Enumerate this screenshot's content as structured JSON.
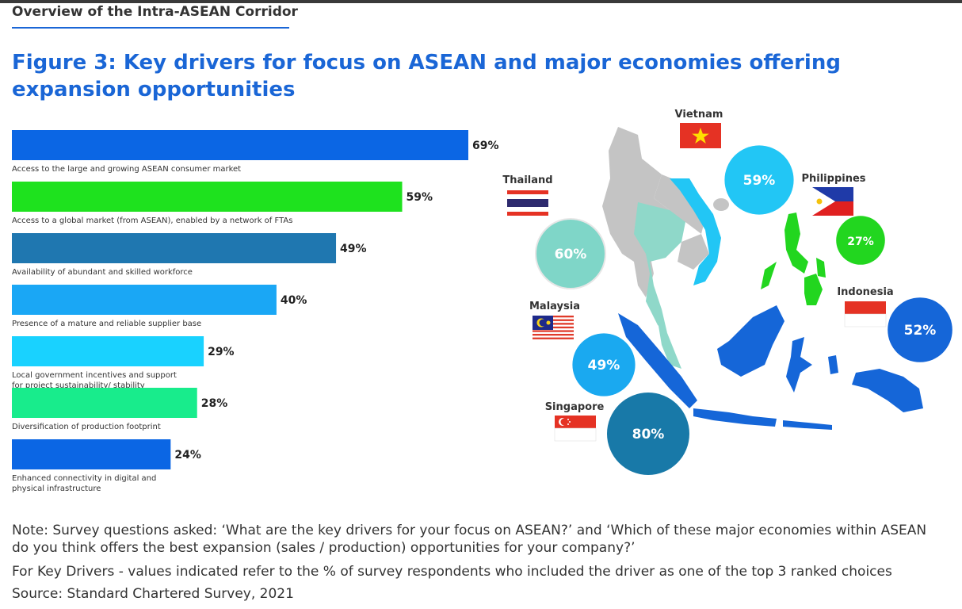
{
  "header": {
    "section_title": "Overview of the Intra-ASEAN Corridor",
    "figure_title": "Figure 3: Key drivers for focus on ASEAN and major economies offering expansion opportunities"
  },
  "chart_data": [
    {
      "type": "bar",
      "orientation": "horizontal",
      "categories": [
        "Access to the large and growing ASEAN consumer market",
        "Access to a global market (from ASEAN), enabled by a network of FTAs",
        "Availability of abundant and skilled workforce",
        "Presence of a mature and reliable supplier base",
        "Local government incentives and support for project sustainability/ stability",
        "Diversification of production footprint",
        "Enhanced connectivity in digital and physical infrastructure"
      ],
      "category_lines": [
        [
          "Access to the large and growing ASEAN consumer market"
        ],
        [
          "Access to a global market (from ASEAN), enabled by a network of FTAs"
        ],
        [
          "Availability of abundant and skilled workforce"
        ],
        [
          "Presence of a mature and reliable supplier base"
        ],
        [
          "Local government incentives and support",
          "for project sustainability/ stability"
        ],
        [
          "Diversification of production footprint"
        ],
        [
          "Enhanced connectivity in digital and",
          "physical infrastructure"
        ]
      ],
      "values": [
        69,
        59,
        49,
        40,
        29,
        28,
        24
      ],
      "value_labels": [
        "69%",
        "59%",
        "49%",
        "40%",
        "29%",
        "28%",
        "24%"
      ],
      "colors": [
        "#0b66e4",
        "#1ee21e",
        "#1f77b0",
        "#1aa7f5",
        "#19d2ff",
        "#18ec8c",
        "#0b66e4"
      ],
      "unit": "%"
    },
    {
      "type": "bubble-map",
      "countries": [
        {
          "name": "Vietnam",
          "value": 59,
          "label": "59%",
          "color": "#22c6f5"
        },
        {
          "name": "Thailand",
          "value": 60,
          "label": "60%",
          "color": "#7fd6c8"
        },
        {
          "name": "Philippines",
          "value": 27,
          "label": "27%",
          "color": "#22d61f"
        },
        {
          "name": "Malaysia",
          "value": 49,
          "label": "49%",
          "color": "#1aa9f0"
        },
        {
          "name": "Indonesia",
          "value": 52,
          "label": "52%",
          "color": "#1566d8"
        },
        {
          "name": "Singapore",
          "value": 80,
          "label": "80%",
          "color": "#1879a8"
        }
      ]
    }
  ],
  "notes": {
    "line1": "Note: Survey questions asked: ‘What are the key drivers for your focus on ASEAN?’ and ‘Which of these major economies within ASEAN",
    "line2": "do you think offers the best expansion (sales / production) opportunities for your company?’",
    "line3": "For Key Drivers - values indicated refer to the % of survey respondents who included the driver as one of the top 3 ranked choices",
    "line4": "Source: Standard Chartered Survey, 2021"
  }
}
